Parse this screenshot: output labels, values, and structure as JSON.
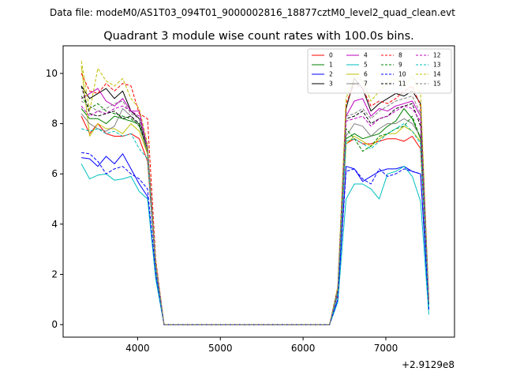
{
  "chart_data": {
    "type": "line",
    "suptitle": "Data file: modeM0/AS1T03_094T01_9000002816_18877cztM0_level2_quad_clean.evt",
    "title": "Quadrant 3 module wise count rates with 100.0s bins.",
    "xlabel": "",
    "ylabel": "",
    "x_offset_label": "+2.9129e8",
    "xlim": [
      3100,
      7830
    ],
    "ylim": [
      -0.5,
      11.1
    ],
    "xticks": [
      4000,
      5000,
      6000,
      7000
    ],
    "xtick_labels": [
      "4000",
      "5000",
      "6000",
      "7000"
    ],
    "yticks": [
      0,
      2,
      4,
      6,
      8,
      10
    ],
    "ytick_labels": [
      "0",
      "2",
      "4",
      "6",
      "8",
      "10"
    ],
    "grid": false,
    "legend_placement": "top-right",
    "legend_columns": 4,
    "x": [
      3320,
      3420,
      3520,
      3620,
      3720,
      3820,
      3920,
      4020,
      4120,
      4220,
      4320,
      6320,
      6420,
      6520,
      6620,
      6720,
      6820,
      6920,
      7020,
      7120,
      7220,
      7320,
      7420,
      7520
    ],
    "series": [
      {
        "name": "0",
        "color": "#ff0000",
        "dash": "solid",
        "values": [
          8.3,
          7.6,
          8.0,
          7.6,
          7.5,
          7.5,
          7.6,
          7.4,
          6.5,
          2.2,
          0,
          0,
          1.2,
          7.2,
          7.4,
          7.2,
          7.2,
          7.3,
          7.4,
          7.4,
          7.3,
          7.5,
          7.0,
          0.8
        ]
      },
      {
        "name": "1",
        "color": "#008000",
        "dash": "solid",
        "values": [
          8.6,
          8.2,
          8.2,
          8.0,
          8.3,
          8.2,
          8.1,
          8.0,
          6.8,
          2.3,
          0,
          0,
          1.3,
          7.4,
          7.6,
          7.4,
          7.5,
          7.6,
          7.9,
          8.1,
          8.6,
          8.2,
          7.4,
          0.8
        ]
      },
      {
        "name": "2",
        "color": "#0000ff",
        "dash": "solid",
        "values": [
          6.65,
          6.6,
          6.3,
          6.7,
          6.4,
          6.8,
          6.2,
          5.6,
          5.1,
          1.9,
          0,
          0,
          1.0,
          6.3,
          6.2,
          5.7,
          5.9,
          6.1,
          6.2,
          6.2,
          6.3,
          6.1,
          6.0,
          0.6
        ]
      },
      {
        "name": "3",
        "color": "#000000",
        "dash": "solid",
        "values": [
          9.5,
          9.0,
          9.2,
          9.4,
          9.0,
          9.3,
          8.5,
          8.2,
          7.0,
          2.4,
          0,
          0,
          1.4,
          8.6,
          9.8,
          9.4,
          8.5,
          8.8,
          9.0,
          9.2,
          9.1,
          9.3,
          8.8,
          0.9
        ]
      },
      {
        "name": "4",
        "color": "#bf00bf",
        "dash": "solid",
        "values": [
          9.0,
          9.2,
          9.4,
          8.9,
          8.7,
          9.0,
          8.5,
          8.5,
          7.0,
          2.4,
          0,
          0,
          1.3,
          8.3,
          8.9,
          9.0,
          8.3,
          8.6,
          8.5,
          8.7,
          8.8,
          8.9,
          8.3,
          0.9
        ]
      },
      {
        "name": "5",
        "color": "#00bfbf",
        "dash": "solid",
        "values": [
          6.4,
          5.8,
          5.95,
          6.0,
          5.75,
          5.8,
          5.9,
          5.3,
          5.0,
          1.8,
          0,
          0,
          0.9,
          5.0,
          5.6,
          5.6,
          5.4,
          5.0,
          6.0,
          6.1,
          6.3,
          5.9,
          4.9,
          0.4
        ]
      },
      {
        "name": "6",
        "color": "#bfbf00",
        "dash": "solid",
        "values": [
          10.3,
          7.5,
          8.0,
          7.8,
          7.8,
          7.6,
          8.0,
          7.7,
          6.8,
          2.3,
          0,
          0,
          1.3,
          7.2,
          7.5,
          7.3,
          7.1,
          7.4,
          7.6,
          7.6,
          7.9,
          7.7,
          7.3,
          0.8
        ]
      },
      {
        "name": "7",
        "color": "#808080",
        "dash": "solid",
        "values": [
          8.4,
          8.0,
          7.8,
          7.7,
          7.9,
          8.6,
          8.3,
          7.9,
          6.9,
          2.3,
          0,
          0,
          1.3,
          7.5,
          8.0,
          7.9,
          7.5,
          7.8,
          8.0,
          8.0,
          8.2,
          8.0,
          7.5,
          0.8
        ]
      },
      {
        "name": "8",
        "color": "#ff0000",
        "dash": "dashed",
        "values": [
          10.0,
          9.3,
          9.2,
          9.6,
          9.3,
          9.6,
          9.5,
          8.4,
          8.2,
          2.6,
          0,
          0,
          1.5,
          8.8,
          9.6,
          9.4,
          8.7,
          8.9,
          8.8,
          9.0,
          9.3,
          9.5,
          8.7,
          0.9
        ]
      },
      {
        "name": "9",
        "color": "#008000",
        "dash": "dashed",
        "values": [
          9.1,
          8.6,
          8.8,
          8.5,
          8.4,
          8.3,
          8.2,
          7.9,
          7.0,
          2.4,
          0,
          0,
          1.3,
          7.8,
          7.4,
          6.9,
          7.1,
          7.5,
          7.6,
          7.8,
          7.9,
          8.3,
          7.4,
          0.8
        ]
      },
      {
        "name": "10",
        "color": "#0000ff",
        "dash": "dashed",
        "values": [
          6.85,
          6.8,
          6.5,
          6.0,
          6.2,
          6.3,
          6.0,
          5.8,
          5.4,
          2.0,
          0,
          0,
          1.0,
          6.1,
          6.2,
          5.8,
          5.6,
          6.2,
          5.9,
          6.0,
          6.2,
          6.1,
          6.0,
          0.6
        ]
      },
      {
        "name": "11",
        "color": "#000000",
        "dash": "dashed",
        "values": [
          9.5,
          8.4,
          8.3,
          8.4,
          8.5,
          8.2,
          8.3,
          8.0,
          7.0,
          2.4,
          0,
          0,
          1.4,
          8.2,
          8.3,
          8.5,
          8.0,
          8.2,
          8.3,
          8.6,
          8.7,
          8.8,
          7.9,
          0.9
        ]
      },
      {
        "name": "12",
        "color": "#bf00bf",
        "dash": "dashed",
        "values": [
          8.7,
          8.3,
          8.5,
          8.4,
          8.6,
          8.7,
          8.5,
          8.3,
          7.1,
          2.4,
          0,
          0,
          1.3,
          8.1,
          8.2,
          8.3,
          7.9,
          8.2,
          8.3,
          8.5,
          8.7,
          8.6,
          8.1,
          0.9
        ]
      },
      {
        "name": "13",
        "color": "#00bfbf",
        "dash": "dashed",
        "values": [
          7.8,
          7.7,
          7.8,
          7.6,
          7.7,
          7.5,
          7.6,
          7.0,
          6.6,
          2.2,
          0,
          0,
          1.2,
          7.3,
          7.4,
          7.2,
          7.0,
          7.3,
          7.6,
          7.8,
          8.0,
          7.7,
          7.2,
          0.7
        ]
      },
      {
        "name": "14",
        "color": "#bfbf00",
        "dash": "dashed",
        "values": [
          10.5,
          8.5,
          10.2,
          9.7,
          9.5,
          9.8,
          9.0,
          8.6,
          7.2,
          2.5,
          0,
          0,
          1.5,
          9.0,
          9.9,
          9.7,
          8.9,
          9.3,
          9.6,
          9.8,
          9.5,
          9.9,
          9.2,
          1.0
        ]
      },
      {
        "name": "15",
        "color": "#808080",
        "dash": "dashed",
        "values": [
          8.9,
          8.7,
          8.5,
          8.6,
          8.8,
          8.9,
          8.4,
          8.2,
          7.0,
          2.4,
          0,
          0,
          1.4,
          8.3,
          8.4,
          8.6,
          8.2,
          8.5,
          8.7,
          8.9,
          9.0,
          9.1,
          8.4,
          0.9
        ]
      }
    ]
  }
}
